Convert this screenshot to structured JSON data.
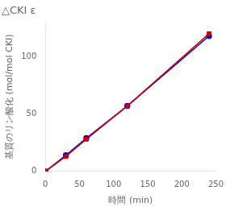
{
  "chart_data": {
    "type": "line",
    "title": "△CKI ε",
    "x_label": "時間 (min)",
    "y_label": "基質のリン酸化 (mol/mol CKI)",
    "series": [
      {
        "color": "#0000cc",
        "marker": "circle",
        "x": [
          0,
          30,
          60,
          120,
          240
        ],
        "values": [
          0,
          14,
          29,
          57,
          118
        ]
      },
      {
        "color": "#cc0000",
        "marker": "square",
        "x": [
          0,
          30,
          60,
          120,
          240
        ],
        "values": [
          0,
          13,
          28,
          57,
          120
        ]
      }
    ],
    "xlim": [
      0,
      250
    ],
    "ylim": [
      0,
      130
    ],
    "xticks": [
      0,
      50,
      100,
      150,
      200,
      250
    ],
    "yticks": [
      0,
      50,
      100
    ],
    "grid": false
  }
}
